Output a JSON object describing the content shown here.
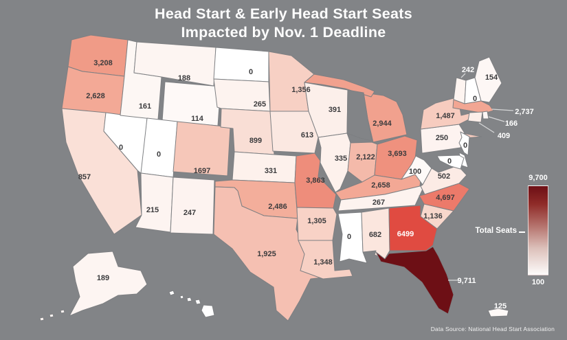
{
  "title": {
    "line1": "Head Start & Early Head Start Seats",
    "line2": "Impacted by Nov. 1 Deadline"
  },
  "legend": {
    "label": "Total Seats",
    "max": "9,700",
    "min": "100"
  },
  "source": "Data Source: National Head Start Association",
  "colors": {
    "background": "#828487",
    "state_border": "#7d7f82",
    "label_dark": "#3b3b3d",
    "label_light": "#ffffff",
    "callout_line": "#d6d7d8",
    "scale_max": 9711,
    "scale_stops": [
      [
        0.0,
        "#ffffff"
      ],
      [
        0.02,
        "#fdf5f2"
      ],
      [
        0.05,
        "#fcece6"
      ],
      [
        0.1,
        "#f9dcd2"
      ],
      [
        0.15,
        "#f7cdc0"
      ],
      [
        0.2,
        "#f5c0b1"
      ],
      [
        0.27,
        "#f3a996"
      ],
      [
        0.33,
        "#f09b87"
      ],
      [
        0.4,
        "#ee8d7b"
      ],
      [
        0.48,
        "#ec7b6b"
      ],
      [
        0.55,
        "#e96a5c"
      ],
      [
        0.67,
        "#e04b41"
      ],
      [
        0.8,
        "#c22d2b"
      ],
      [
        0.9,
        "#97181b"
      ],
      [
        1.0,
        "#6d0f15"
      ]
    ]
  },
  "chart_data": {
    "type": "choropleth",
    "title": "Head Start & Early Head Start Seats Impacted by Nov. 1 Deadline",
    "legend": {
      "label": "Total Seats",
      "range": [
        100,
        9700
      ]
    },
    "source": "Data Source: National Head Start Association",
    "states": [
      {
        "state": "WA",
        "label": "3,208",
        "value": 3208
      },
      {
        "state": "OR",
        "label": "2,628",
        "value": 2628
      },
      {
        "state": "CA",
        "label": "857",
        "value": 857
      },
      {
        "state": "NV",
        "label": "0",
        "value": 0
      },
      {
        "state": "ID",
        "label": "161",
        "value": 161
      },
      {
        "state": "MT",
        "label": "188",
        "value": 188
      },
      {
        "state": "WY",
        "label": "114",
        "value": 114
      },
      {
        "state": "UT",
        "label": "0",
        "value": 0
      },
      {
        "state": "CO",
        "label": "1697",
        "value": 1697
      },
      {
        "state": "AZ",
        "label": "215",
        "value": 215
      },
      {
        "state": "NM",
        "label": "247",
        "value": 247
      },
      {
        "state": "ND",
        "label": "0",
        "value": 0
      },
      {
        "state": "SD",
        "label": "265",
        "value": 265
      },
      {
        "state": "NE",
        "label": "899",
        "value": 899
      },
      {
        "state": "KS",
        "label": "331",
        "value": 331
      },
      {
        "state": "OK",
        "label": "2,486",
        "value": 2486
      },
      {
        "state": "TX",
        "label": "1,925",
        "value": 1925
      },
      {
        "state": "MN",
        "label": "1,356",
        "value": 1356
      },
      {
        "state": "IA",
        "label": "613",
        "value": 613
      },
      {
        "state": "MO",
        "label": "3,863",
        "value": 3863
      },
      {
        "state": "AR",
        "label": "1,305",
        "value": 1305
      },
      {
        "state": "LA",
        "label": "1,348",
        "value": 1348
      },
      {
        "state": "WI",
        "label": "391",
        "value": 391
      },
      {
        "state": "IL",
        "label": "335",
        "value": 335
      },
      {
        "state": "MI",
        "label": "2,944",
        "value": 2944
      },
      {
        "state": "IN",
        "label": "2,122",
        "value": 2122
      },
      {
        "state": "OH",
        "label": "3,693",
        "value": 3693
      },
      {
        "state": "KY",
        "label": "2,658",
        "value": 2658
      },
      {
        "state": "TN",
        "label": "267",
        "value": 267
      },
      {
        "state": "WV",
        "label": "100",
        "value": 100
      },
      {
        "state": "VA",
        "label": "502",
        "value": 502
      },
      {
        "state": "PA",
        "label": "250",
        "value": 250
      },
      {
        "state": "NY",
        "label": "1,487",
        "value": 1487
      },
      {
        "state": "NJ",
        "label": "0",
        "value": 0
      },
      {
        "state": "DE",
        "label": "",
        "value": 0
      },
      {
        "state": "MD",
        "label": "0",
        "value": 0
      },
      {
        "state": "VT",
        "label": "242",
        "value": 242
      },
      {
        "state": "NH",
        "label": "0",
        "value": 0
      },
      {
        "state": "ME",
        "label": "154",
        "value": 154
      },
      {
        "state": "MA",
        "label": "2,737",
        "value": 2737
      },
      {
        "state": "RI",
        "label": "166",
        "value": 166
      },
      {
        "state": "CT",
        "label": "409",
        "value": 409
      },
      {
        "state": "MS",
        "label": "0",
        "value": 0
      },
      {
        "state": "AL",
        "label": "682",
        "value": 682
      },
      {
        "state": "GA",
        "label": "6499",
        "value": 6499
      },
      {
        "state": "FL",
        "label": "9,711",
        "value": 9711
      },
      {
        "state": "SC",
        "label": "1,136",
        "value": 1136
      },
      {
        "state": "NC",
        "label": "4,697",
        "value": 4697
      },
      {
        "state": "AK",
        "label": "189",
        "value": 189
      },
      {
        "state": "HI",
        "label": "",
        "value": 0
      },
      {
        "state": "PR",
        "label": "125",
        "value": 125
      }
    ]
  }
}
